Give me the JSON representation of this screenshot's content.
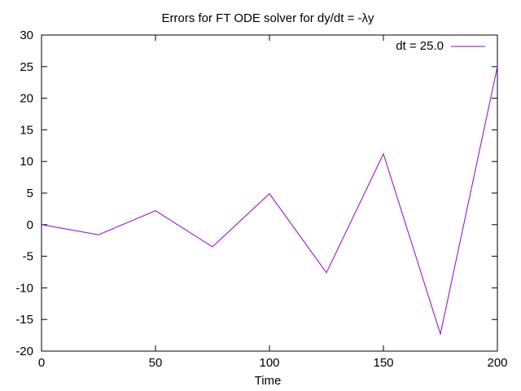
{
  "chart_data": {
    "type": "line",
    "title": "Errors for FT ODE solver for dy/dt = -λy",
    "xlabel": "Time",
    "ylabel": "",
    "xlim": [
      0,
      200
    ],
    "ylim": [
      -20,
      30
    ],
    "x_ticks": [
      0,
      50,
      100,
      150,
      200
    ],
    "y_ticks": [
      -20,
      -15,
      -10,
      -5,
      0,
      5,
      10,
      15,
      20,
      25,
      30
    ],
    "grid": false,
    "legend_position": "top-right",
    "series": [
      {
        "name": "dt = 25.0",
        "color": "#9400d3",
        "x": [
          0,
          25,
          50,
          75,
          100,
          125,
          150,
          175,
          200
        ],
        "y": [
          0,
          -1.6,
          2.2,
          -3.5,
          4.9,
          -7.6,
          11.2,
          -17.3,
          25.0
        ]
      }
    ]
  }
}
